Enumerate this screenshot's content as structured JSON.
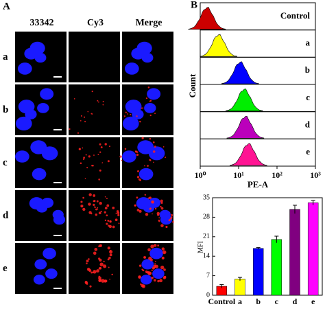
{
  "panel_a": {
    "label": "A",
    "columns": [
      "33342",
      "Cy3",
      "Merge"
    ],
    "rows": [
      "a",
      "b",
      "c",
      "d",
      "e"
    ]
  },
  "chart_data": [
    {
      "type": "density",
      "panel_label": "B",
      "xlabel": "PE-A",
      "ylabel": "Count",
      "xscale": "log",
      "xlim": [
        1,
        1000
      ],
      "xticks": [
        {
          "value": 1,
          "label": "10⁰"
        },
        {
          "value": 10,
          "label": "10¹"
        },
        {
          "value": 100,
          "label": "10²"
        },
        {
          "value": 1000,
          "label": "10³"
        }
      ],
      "series": [
        {
          "name": "Control",
          "color": "#cc0000",
          "peak": 1.5
        },
        {
          "name": "a",
          "color": "#ffff00",
          "peak": 3
        },
        {
          "name": "b",
          "color": "#0000ff",
          "peak": 11
        },
        {
          "name": "c",
          "color": "#00ee00",
          "peak": 14
        },
        {
          "name": "d",
          "color": "#bb00bb",
          "peak": 15
        },
        {
          "name": "e",
          "color": "#ff1493",
          "peak": 18
        }
      ]
    },
    {
      "type": "bar",
      "ylabel": "MFI",
      "categories": [
        "Control",
        "a",
        "b",
        "c",
        "d",
        "e"
      ],
      "values": [
        3.2,
        5.8,
        16.8,
        20,
        30.8,
        33.2
      ],
      "errors": [
        0.6,
        0.6,
        0.3,
        1.2,
        1.5,
        0.8
      ],
      "colors": [
        "#ff0000",
        "#ffff00",
        "#0000ff",
        "#00ff00",
        "#800080",
        "#ff00ff"
      ],
      "ylim": [
        0,
        35
      ],
      "yticks": [
        0,
        7,
        14,
        21,
        28,
        35
      ]
    }
  ]
}
